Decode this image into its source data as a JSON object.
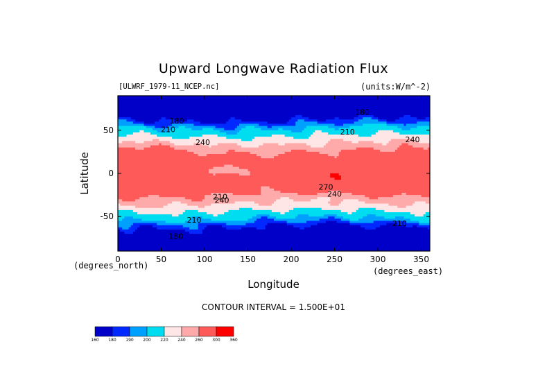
{
  "chart_data": {
    "type": "heatmap",
    "title": "Upward Longwave Radiation Flux",
    "source_label": "[ULWRF_1979-11_NCEP.nc]",
    "units_label": "(units:W/m^-2)",
    "xlabel": "Longitude",
    "ylabel": "Latitude",
    "x_unit_note": "(degrees_east)",
    "y_unit_note": "(degrees_north)",
    "xlim": [
      0,
      360
    ],
    "ylim": [
      -90,
      90
    ],
    "x_ticks": [
      0,
      50,
      100,
      150,
      200,
      250,
      300,
      350
    ],
    "y_ticks": [
      -50,
      0,
      50
    ],
    "contour_interval_label": "CONTOUR INTERVAL = 1.500E+01",
    "contour_labels": [
      {
        "text": "180",
        "lon": 68,
        "lat": 58
      },
      {
        "text": "210",
        "lon": 58,
        "lat": 48
      },
      {
        "text": "240",
        "lon": 98,
        "lat": 33
      },
      {
        "text": "240",
        "lon": 340,
        "lat": 36
      },
      {
        "text": "210",
        "lon": 265,
        "lat": 45
      },
      {
        "text": "180",
        "lon": 282,
        "lat": 68
      },
      {
        "text": "210",
        "lon": 118,
        "lat": -30
      },
      {
        "text": "240",
        "lon": 120,
        "lat": -34
      },
      {
        "text": "270",
        "lon": 240,
        "lat": -19
      },
      {
        "text": "240",
        "lon": 250,
        "lat": -27
      },
      {
        "text": "210",
        "lon": 88,
        "lat": -57
      },
      {
        "text": "210",
        "lon": 325,
        "lat": -61
      },
      {
        "text": "180",
        "lon": 67,
        "lat": -76
      }
    ],
    "colorbar": {
      "levels": [
        "160",
        "180",
        "190",
        "200",
        "220",
        "240",
        "260",
        "300",
        "360"
      ],
      "colors": [
        "#0000c8",
        "#0028ff",
        "#00a0ff",
        "#00dcf0",
        "#ffe6e6",
        "#ffaaaa",
        "#ff5a5a",
        "#ff0000"
      ]
    }
  }
}
